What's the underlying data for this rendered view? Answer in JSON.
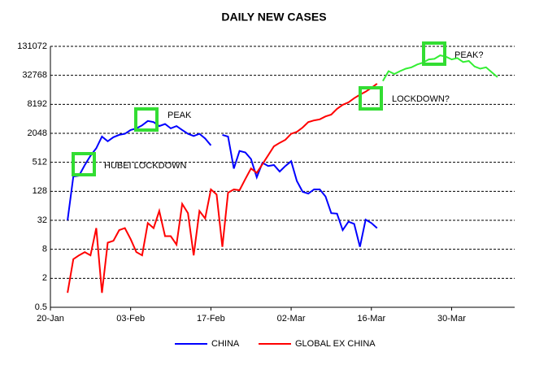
{
  "chart_data": {
    "type": "line",
    "title": "DAILY NEW CASES",
    "x": [
      "23-Jan",
      "24-Jan",
      "25-Jan",
      "26-Jan",
      "27-Jan",
      "28-Jan",
      "29-Jan",
      "30-Jan",
      "31-Jan",
      "01-Feb",
      "02-Feb",
      "03-Feb",
      "04-Feb",
      "05-Feb",
      "06-Feb",
      "07-Feb",
      "08-Feb",
      "09-Feb",
      "10-Feb",
      "11-Feb",
      "12-Feb",
      "13-Feb",
      "14-Feb",
      "15-Feb",
      "16-Feb",
      "17-Feb",
      "18-Feb",
      "19-Feb",
      "20-Feb",
      "21-Feb",
      "22-Feb",
      "23-Feb",
      "24-Feb",
      "25-Feb",
      "26-Feb",
      "27-Feb",
      "28-Feb",
      "29-Feb",
      "01-Mar",
      "02-Mar",
      "03-Mar",
      "04-Mar",
      "05-Mar",
      "06-Mar",
      "07-Mar",
      "08-Mar",
      "09-Mar",
      "10-Mar",
      "11-Mar",
      "12-Mar",
      "13-Mar",
      "14-Mar",
      "15-Mar",
      "16-Mar",
      "17-Mar",
      "18-Mar",
      "19-Mar",
      "20-Mar",
      "21-Mar",
      "22-Mar",
      "23-Mar",
      "24-Mar",
      "25-Mar",
      "26-Mar",
      "27-Mar",
      "28-Mar",
      "29-Mar",
      "30-Mar",
      "31-Mar",
      "01-Apr",
      "02-Apr",
      "03-Apr",
      "04-Apr",
      "05-Apr",
      "06-Apr",
      "07-Apr"
    ],
    "series": [
      {
        "name": "CHINA",
        "color": "#0000ff",
        "values": [
          32,
          260,
          270,
          450,
          700,
          1000,
          1750,
          1400,
          1700,
          1900,
          2000,
          2400,
          2600,
          3000,
          3700,
          3500,
          2900,
          3200,
          2600,
          2900,
          2400,
          2000,
          1800,
          2000,
          1600,
          1150,
          null,
          1900,
          1750,
          380,
          880,
          820,
          600,
          250,
          500,
          430,
          450,
          330,
          430,
          540,
          210,
          125,
          115,
          140,
          140,
          100,
          45,
          44,
          20,
          30,
          27,
          9,
          33,
          28,
          22,
          null,
          null,
          null,
          null,
          null,
          null,
          null,
          null,
          null,
          null,
          null,
          null,
          null,
          null,
          null,
          null,
          null,
          null,
          null,
          null,
          null
        ]
      },
      {
        "name": "GLOBAL EX CHINA",
        "color": "#ff0000",
        "values": [
          1,
          5,
          6,
          7,
          6,
          22,
          1,
          11,
          12,
          20,
          22,
          13,
          7,
          6,
          28,
          22,
          50,
          15,
          15,
          10,
          70,
          45,
          6,
          50,
          35,
          140,
          110,
          9,
          120,
          140,
          135,
          230,
          380,
          310,
          470,
          720,
          1100,
          1300,
          1500,
          2000,
          2200,
          2700,
          3500,
          3800,
          4000,
          4600,
          5000,
          6600,
          8000,
          9000,
          11000,
          13000,
          15000,
          18000,
          22000,
          null,
          null,
          null,
          null,
          null,
          null,
          null,
          null,
          null,
          null,
          null,
          null,
          null,
          null,
          null,
          null,
          null,
          null,
          null,
          null,
          null
        ]
      },
      {
        "color": "#33ee33",
        "values": [
          null,
          null,
          null,
          null,
          null,
          null,
          null,
          null,
          null,
          null,
          null,
          null,
          null,
          null,
          null,
          null,
          null,
          null,
          null,
          null,
          null,
          null,
          null,
          null,
          null,
          null,
          null,
          null,
          null,
          null,
          null,
          null,
          null,
          null,
          null,
          null,
          null,
          null,
          null,
          null,
          null,
          null,
          null,
          null,
          null,
          null,
          null,
          null,
          null,
          null,
          null,
          null,
          null,
          null,
          null,
          25000,
          40000,
          35000,
          40000,
          45000,
          48000,
          55000,
          60000,
          70000,
          72000,
          85000,
          80000,
          70000,
          75000,
          62000,
          65000,
          50000,
          45000,
          48000,
          38000,
          30000
        ]
      }
    ],
    "xlim": [
      "20-Jan",
      "10-Apr"
    ],
    "xticks": [
      "20-Jan",
      "03-Feb",
      "17-Feb",
      "02-Mar",
      "16-Mar",
      "30-Mar"
    ],
    "ylim": [
      0.5,
      131072
    ],
    "yticks": [
      0.5,
      2,
      8,
      32,
      128,
      512,
      2048,
      8192,
      32768,
      131072
    ],
    "yscale": "log",
    "grid": true,
    "annotations": [
      "HUBEI LOCKDOWN",
      "PEAK",
      "LOCKDOWN?",
      "PEAK?"
    ],
    "annotation_color": "#33dd33"
  }
}
